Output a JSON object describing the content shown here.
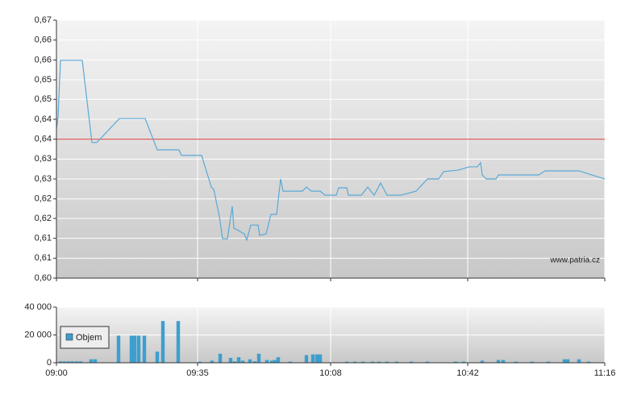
{
  "chart_data": [
    {
      "type": "line",
      "color": "#5aa9d6",
      "annotation": "www.patria.cz",
      "reference_line": {
        "value": 0.6377,
        "color": "#e06060"
      },
      "x": [
        540,
        540.4,
        541,
        546.4,
        548.8,
        550,
        555.6,
        562,
        565,
        570.4,
        571,
        576,
        578.4,
        579,
        580.4,
        581.2,
        582.4,
        583.6,
        584,
        586.6,
        587.2,
        588.2,
        590,
        590.4,
        592,
        593.2,
        594.6,
        595.6,
        596.2,
        601,
        602,
        603.2,
        605.4,
        606.6,
        609.4,
        610,
        612,
        612.4,
        615.6,
        617.2,
        618.8,
        620.4,
        622,
        625.4,
        629.2,
        632,
        634.8,
        636,
        639.6,
        642.4,
        644.4,
        645.2,
        645.6,
        646.6,
        649,
        649.6,
        659.6,
        661.2,
        669.6,
        676
      ],
      "values": [
        0.6405,
        0.6438,
        0.6591,
        0.6591,
        0.6368,
        0.6368,
        0.6433,
        0.6433,
        0.6348,
        0.6348,
        0.6333,
        0.6333,
        0.6247,
        0.6241,
        0.6168,
        0.6107,
        0.6107,
        0.6195,
        0.6136,
        0.612,
        0.6103,
        0.6144,
        0.6144,
        0.6116,
        0.612,
        0.6173,
        0.6173,
        0.6269,
        0.6236,
        0.6236,
        0.6247,
        0.6236,
        0.6236,
        0.6225,
        0.6225,
        0.6245,
        0.6245,
        0.6225,
        0.6225,
        0.6247,
        0.6225,
        0.6258,
        0.6225,
        0.6225,
        0.6236,
        0.6269,
        0.6269,
        0.6289,
        0.6293,
        0.6302,
        0.6302,
        0.6313,
        0.628,
        0.6269,
        0.6269,
        0.628,
        0.628,
        0.6291,
        0.6291,
        0.6269
      ],
      "xlim": [
        540,
        676
      ],
      "ylim": [
        0.6,
        0.67
      ],
      "yticks": [
        {
          "value": 0.6,
          "label": "0,60"
        },
        {
          "value": 0.6054,
          "label": "0,61"
        },
        {
          "value": 0.6108,
          "label": "0,61"
        },
        {
          "value": 0.6162,
          "label": "0,62"
        },
        {
          "value": 0.6215,
          "label": "0,62"
        },
        {
          "value": 0.6269,
          "label": "0,63"
        },
        {
          "value": 0.6323,
          "label": "0,63"
        },
        {
          "value": 0.6377,
          "label": "0,64"
        },
        {
          "value": 0.6431,
          "label": "0,64"
        },
        {
          "value": 0.6485,
          "label": "0,65"
        },
        {
          "value": 0.6538,
          "label": "0,65"
        },
        {
          "value": 0.6592,
          "label": "0,66"
        },
        {
          "value": 0.6646,
          "label": "0,66"
        },
        {
          "value": 0.67,
          "label": "0,67"
        }
      ],
      "grid": true
    },
    {
      "type": "bar",
      "xlim": [
        540,
        676
      ],
      "ylim": [
        0,
        40000
      ],
      "xticks": [
        {
          "value": 540,
          "label": "09:00"
        },
        {
          "value": 575,
          "label": "09:35"
        },
        {
          "value": 608,
          "label": "10:08"
        },
        {
          "value": 642,
          "label": "10:42"
        },
        {
          "value": 676,
          "label": "11:16"
        }
      ],
      "yticks": [
        0,
        {
          "value": 20000,
          "label": "20 000"
        },
        {
          "value": 40000,
          "label": "40 000"
        }
      ],
      "grid": true,
      "legend": "left",
      "series": [
        {
          "name": "Objem",
          "color": "#3d9fcf",
          "x": [
            541,
            542,
            543,
            544,
            545,
            546,
            548.6,
            549.6,
            555.4,
            558.6,
            559.4,
            560.4,
            561.8,
            565,
            566.4,
            570.2,
            575.6,
            578.6,
            580.6,
            583.2,
            584.2,
            585.2,
            586.2,
            588,
            589.2,
            590.2,
            592.2,
            593.4,
            594.2,
            595,
            598,
            602,
            603.6,
            604.6,
            605.4,
            612,
            614,
            616,
            618.4,
            620,
            622,
            624.4,
            628,
            632,
            639,
            641,
            645.6,
            649.6,
            650.8,
            654,
            658,
            662,
            666,
            666.8,
            669.6,
            672
          ],
          "values": [
            1000,
            1000,
            1000,
            1000,
            1000,
            1000,
            2500,
            2500,
            19500,
            19500,
            19500,
            19500,
            19500,
            8000,
            30000,
            30000,
            800,
            1500,
            6500,
            3500,
            1000,
            4000,
            1500,
            2500,
            1000,
            6500,
            2000,
            1500,
            2000,
            4000,
            800,
            5500,
            6000,
            6000,
            6000,
            800,
            800,
            800,
            800,
            800,
            800,
            800,
            800,
            800,
            800,
            800,
            1500,
            2000,
            2000,
            800,
            800,
            800,
            2500,
            2500,
            2500,
            800
          ]
        }
      ]
    }
  ]
}
